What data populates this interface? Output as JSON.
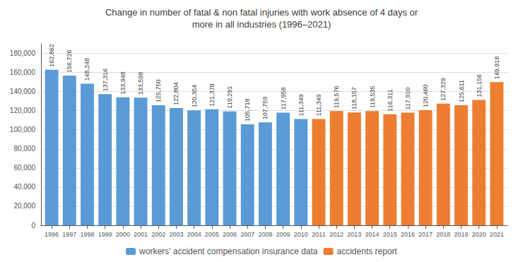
{
  "chart_data": {
    "type": "bar",
    "title": "Change in number of fatal & non fatal injuries with work absence of 4 days or\nmore in all industries (1996–2021)",
    "series": [
      {
        "name": "workers' accident compensation insurance data",
        "color": "#5B9BD5",
        "x": [
          1996,
          1997,
          1998,
          1999,
          2000,
          2001,
          2002,
          2003,
          2004,
          2005,
          2006,
          2007,
          2008,
          2009,
          2010
        ],
        "values": [
          162862,
          156726,
          148248,
          137316,
          133948,
          133598,
          125750,
          122804,
          120354,
          121378,
          119291,
          105718,
          107759,
          117958,
          111349
        ],
        "value_labels": [
          "162,862",
          "156,726",
          "148,248",
          "137,316",
          "133,948",
          "133,598",
          "125,750",
          "122,804",
          "120,354",
          "121,378",
          "119,291",
          "105,718",
          "107,759",
          "117,958",
          "111,349"
        ]
      },
      {
        "name": "accidents report",
        "color": "#ED7D31",
        "x": [
          2011,
          2012,
          2013,
          2014,
          2015,
          2016,
          2017,
          2018,
          2019,
          2020,
          2021
        ],
        "values": [
          111349,
          119576,
          118157,
          119535,
          116311,
          117910,
          120460,
          127329,
          125611,
          131156,
          149918
        ],
        "value_labels": [
          "111,349",
          "119,576",
          "118,157",
          "119,535",
          "116,311",
          "117,910",
          "120,460",
          "127,329",
          "125,611",
          "131,156",
          "149,918"
        ]
      }
    ],
    "xlim": [
      1995.4,
      2021.6
    ],
    "xticks": [
      1996,
      1997,
      1998,
      1999,
      2000,
      2001,
      2002,
      2003,
      2004,
      2005,
      2006,
      2007,
      2008,
      2009,
      2010,
      2011,
      2012,
      2013,
      2014,
      2015,
      2016,
      2017,
      2018,
      2019,
      2020,
      2021
    ],
    "ylim": [
      0,
      190000
    ],
    "yticks": [
      0,
      {
        "value": 20000,
        "label": "20,000"
      },
      {
        "value": 40000,
        "label": "40,000"
      },
      {
        "value": 60000,
        "label": "60,000"
      },
      {
        "value": 80000,
        "label": "80,000"
      },
      {
        "value": 100000,
        "label": "100,000"
      },
      {
        "value": 120000,
        "label": "120,000"
      },
      {
        "value": 140000,
        "label": "140,000"
      },
      {
        "value": 160000,
        "label": "160,000"
      },
      {
        "value": 180000,
        "label": "180,000"
      }
    ],
    "grid": true,
    "legend": "bottom",
    "data_labels": true
  }
}
